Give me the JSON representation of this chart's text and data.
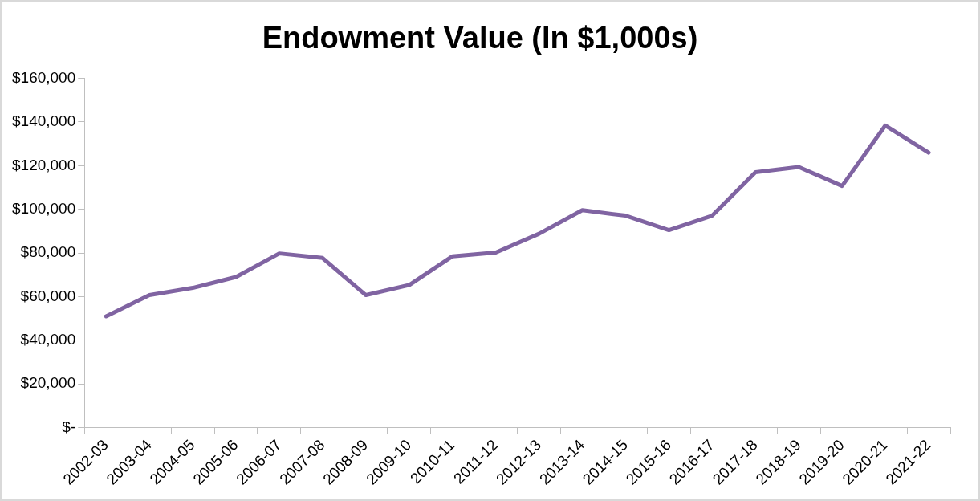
{
  "chart_data": {
    "type": "line",
    "title": "Endowment Value (In $1,000s)",
    "categories": [
      "2002-03",
      "2003-04",
      "2004-05",
      "2005-06",
      "2006-07",
      "2007-08",
      "2008-09",
      "2009-10",
      "2010-11",
      "2011-12",
      "2012-13",
      "2013-14",
      "2014-15",
      "2015-16",
      "2016-17",
      "2017-18",
      "2018-19",
      "2019-20",
      "2020-21",
      "2021-22"
    ],
    "series": [
      {
        "color": "#8064a2",
        "values": [
          51000,
          60700,
          64000,
          69000,
          79800,
          77700,
          60700,
          65300,
          78500,
          80200,
          88800,
          99600,
          97100,
          90500,
          97100,
          117000,
          119400,
          110700,
          138400,
          126000
        ]
      }
    ],
    "ylim": [
      0,
      160000
    ],
    "yticks": [
      {
        "value": 0,
        "label": "$-"
      },
      {
        "value": 20000,
        "label": "$20,000"
      },
      {
        "value": 40000,
        "label": "$40,000"
      },
      {
        "value": 60000,
        "label": "$60,000"
      },
      {
        "value": 80000,
        "label": "$80,000"
      },
      {
        "value": 100000,
        "label": "$100,000"
      },
      {
        "value": 120000,
        "label": "$120,000"
      },
      {
        "value": 140000,
        "label": "$140,000"
      },
      {
        "value": 160000,
        "label": "$160,000"
      }
    ],
    "grid": false,
    "legend": false,
    "marker": "none",
    "line_style": "solid"
  }
}
